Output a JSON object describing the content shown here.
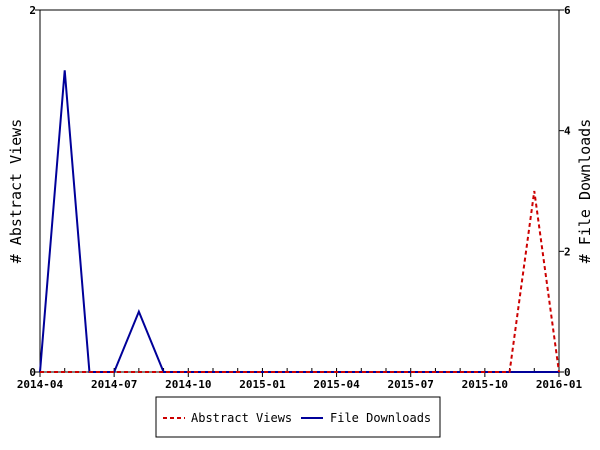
{
  "chart_data": {
    "type": "line",
    "x": [
      "2014-04",
      "2014-05",
      "2014-06",
      "2014-07",
      "2014-08",
      "2014-09",
      "2014-10",
      "2014-11",
      "2014-12",
      "2015-01",
      "2015-02",
      "2015-03",
      "2015-04",
      "2015-05",
      "2015-06",
      "2015-07",
      "2015-08",
      "2015-09",
      "2015-10",
      "2015-11",
      "2015-12",
      "2016-01"
    ],
    "x_tick_labels": [
      "2014-04",
      "2014-07",
      "2014-10",
      "2015-01",
      "2015-04",
      "2015-07",
      "2015-10",
      "2016-01"
    ],
    "series": [
      {
        "name": "Abstract Views",
        "axis": "left",
        "color": "#cc0000",
        "dash": "dashed",
        "values": [
          0,
          0,
          0,
          0,
          0,
          0,
          0,
          0,
          0,
          0,
          0,
          0,
          0,
          0,
          0,
          0,
          0,
          0,
          0,
          0,
          1,
          0
        ]
      },
      {
        "name": "File Downloads",
        "axis": "right",
        "color": "#000099",
        "dash": "solid",
        "values": [
          0,
          5,
          0,
          0,
          1,
          0,
          0,
          0,
          0,
          0,
          0,
          0,
          0,
          0,
          0,
          0,
          0,
          0,
          0,
          0,
          0,
          0
        ]
      }
    ],
    "ylabel_left": "# Abstract Views",
    "ylabel_right": "# File Downloads",
    "ylim_left": [
      0,
      2
    ],
    "ylim_right": [
      0,
      6
    ],
    "y_ticks_left": [
      "0",
      "2"
    ],
    "y_ticks_right": [
      "0",
      "2",
      "4",
      "6"
    ],
    "grid": false,
    "legend_position": "bottom"
  }
}
